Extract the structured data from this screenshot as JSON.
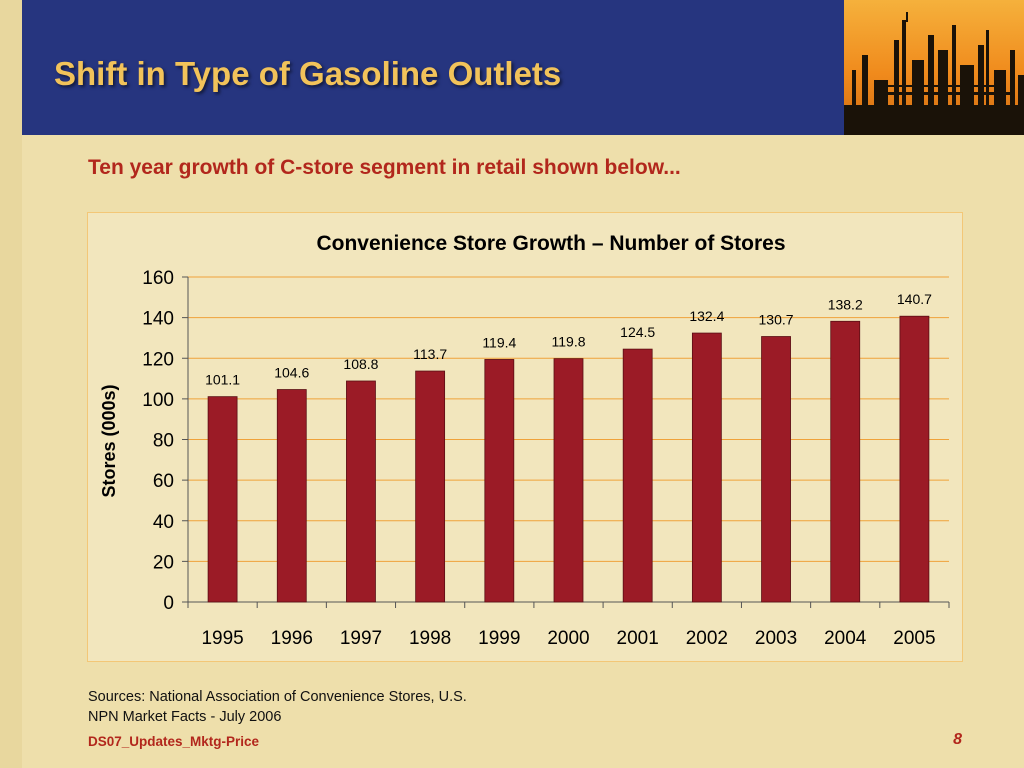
{
  "slide": {
    "title": "Shift in Type of Gasoline Outlets",
    "subtitle": "Ten year growth of C-store segment in retail shown below...",
    "sources_line1": "Sources: National Association of Convenience Stores, U.S.",
    "sources_line2": "NPN Market Facts - July 2006",
    "footer_id": "DS07_Updates_Mktg-Price",
    "page_number": "8",
    "header_image": "refinery-silhouette-at-sunset"
  },
  "colors": {
    "header_bg": "#26357f",
    "title": "#f2c35a",
    "accent_red": "#b2271c",
    "bar": "#9b1b26",
    "gridline": "#f0a23a",
    "background": "#eedfab"
  },
  "chart_data": {
    "type": "bar",
    "title": "Convenience Store Growth – Number of Stores",
    "xlabel": "",
    "ylabel": "Stores (000s)",
    "categories": [
      "1995",
      "1996",
      "1997",
      "1998",
      "1999",
      "2000",
      "2001",
      "2002",
      "2003",
      "2004",
      "2005"
    ],
    "values": [
      101.1,
      104.6,
      108.8,
      113.7,
      119.4,
      119.8,
      124.5,
      132.4,
      130.7,
      138.2,
      140.7
    ],
    "data_labels": [
      "101.1",
      "104.6",
      "108.8",
      "113.7",
      "119.4",
      "119.8",
      "124.5",
      "132.4",
      "130.7",
      "138.2",
      "140.7"
    ],
    "ylim": [
      0,
      160
    ],
    "yticks": [
      0,
      20,
      40,
      60,
      80,
      100,
      120,
      140,
      160
    ],
    "grid": true,
    "legend": "none"
  }
}
